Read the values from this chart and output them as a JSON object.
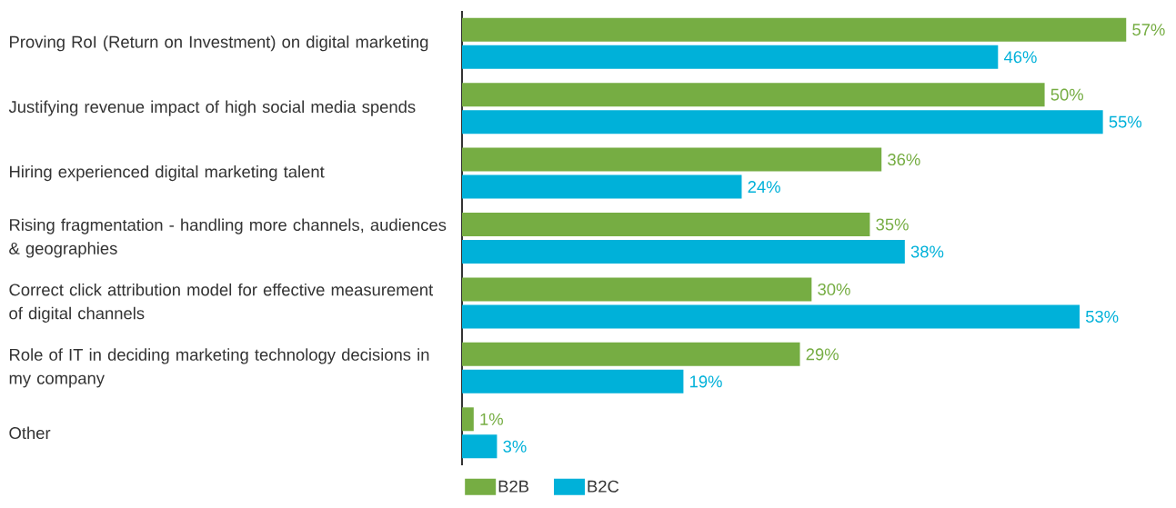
{
  "chart_data": {
    "type": "bar",
    "orientation": "horizontal",
    "categories": [
      "Proving RoI (Return on Investment) on digital marketing",
      "Justifying revenue impact of high social media spends",
      "Hiring experienced digital marketing talent",
      "Rising fragmentation - handling more channels, audiences & geographies",
      "Correct click attribution model for effective measurement of digital channels",
      "Role of IT in deciding marketing technology decisions in my company",
      "Other"
    ],
    "series": [
      {
        "name": "B2B",
        "color": "#76ad43",
        "values": [
          57,
          50,
          36,
          35,
          30,
          29,
          1
        ],
        "value_labels": [
          "57%",
          "50%",
          "36%",
          "35%",
          "30%",
          "29%",
          "1%"
        ]
      },
      {
        "name": "B2C",
        "color": "#00b1d9",
        "values": [
          46,
          55,
          24,
          38,
          53,
          19,
          3
        ],
        "value_labels": [
          "46%",
          "55%",
          "24%",
          "38%",
          "53%",
          "19%",
          "3%"
        ]
      }
    ],
    "legend": "bottom"
  }
}
